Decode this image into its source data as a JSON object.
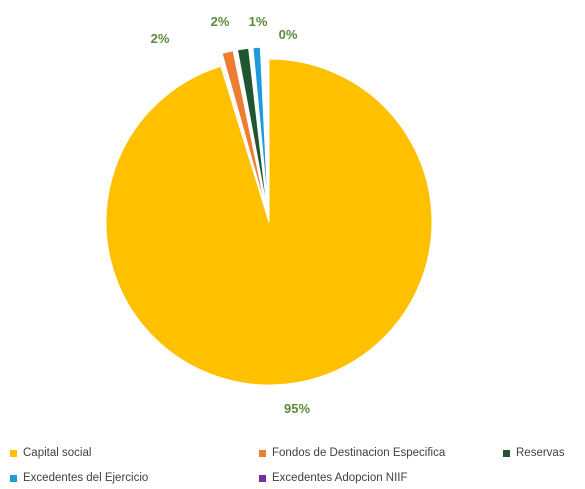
{
  "chart_data": {
    "type": "pie",
    "categories": [
      "Capital social",
      "Fondos de Destinacion Especifica",
      "Reservas",
      "Excedentes del Ejercicio",
      "Excedentes Adopcion NIIF"
    ],
    "values": [
      95,
      2,
      2,
      1,
      0
    ],
    "data_labels": [
      "95%",
      "2%",
      "2%",
      "1%",
      "0%"
    ],
    "colors": [
      "#FFC000",
      "#ED7D31",
      "#1E5631",
      "#1F9BDB",
      "#7030A0"
    ],
    "legend_position": "bottom",
    "exploded": true,
    "start_angle": "top, clockwise"
  }
}
